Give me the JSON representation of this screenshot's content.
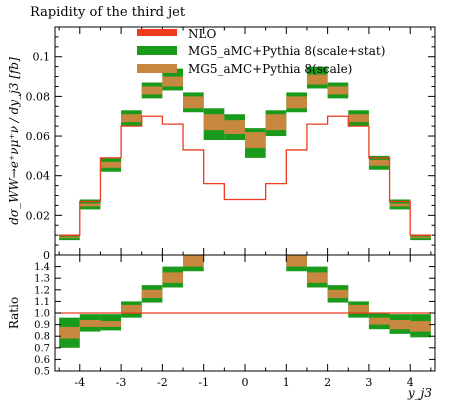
{
  "chart_data": {
    "title": "Rapidity of the third jet",
    "type": "histogram-with-ratio",
    "xlabel": "y_j3",
    "ylabel": "dσ_WW→e⁺νμ⁺ν / dy_j3 [fb]",
    "ratio_label": "Ratio",
    "xlim": [
      -4.6,
      4.6
    ],
    "ylim": [
      0,
      0.115
    ],
    "ratio_ylim": [
      0.5,
      1.5
    ],
    "x_ticks": [
      -4,
      -3,
      -2,
      -1,
      0,
      1,
      2,
      3,
      4
    ],
    "y_ticks": [
      0,
      0.02,
      0.04,
      0.06,
      0.08,
      0.1
    ],
    "y_tick_labels": [
      "0",
      "0.02",
      "0.04",
      "0.06",
      "0.08",
      "0.1"
    ],
    "ratio_ticks": [
      0.5,
      0.6,
      0.7,
      0.8,
      0.9,
      1.0,
      1.1,
      1.2,
      1.3,
      1.4
    ],
    "ratio_tick_labels": [
      "0.5",
      "0.6",
      "0.7",
      "0.8",
      "0.9",
      "1.0",
      "1.1",
      "1.2",
      "1.3",
      "1.4"
    ],
    "legend": [
      {
        "label": "NLO",
        "color": "#ee3a1e"
      },
      {
        "label": "MG5_aMC+Pythia 8(scale+stat)",
        "color": "#1a9a1a"
      },
      {
        "label": "MG5_aMC+Pythia 8(scale)",
        "color": "#c8873e"
      }
    ],
    "bin_edges": [
      -4.5,
      -4.0,
      -3.5,
      -3.0,
      -2.5,
      -2.0,
      -1.5,
      -1.0,
      -0.5,
      0.0,
      0.5,
      1.0,
      1.5,
      2.0,
      2.5,
      3.0,
      3.5,
      4.0,
      4.5
    ],
    "nlo": [
      0.01,
      0.027,
      0.049,
      0.065,
      0.07,
      0.066,
      0.053,
      0.036,
      0.028,
      0.028,
      0.036,
      0.053,
      0.066,
      0.07,
      0.065,
      0.049,
      0.027,
      0.01
    ],
    "mg5_scale_low": [
      0.0085,
      0.0245,
      0.044,
      0.067,
      0.081,
      0.085,
      0.074,
      0.063,
      0.061,
      0.054,
      0.063,
      0.074,
      0.086,
      0.081,
      0.067,
      0.045,
      0.0245,
      0.0085
    ],
    "mg5_scale_high": [
      0.0092,
      0.026,
      0.047,
      0.071,
      0.085,
      0.09,
      0.08,
      0.071,
      0.068,
      0.062,
      0.071,
      0.08,
      0.091,
      0.085,
      0.071,
      0.048,
      0.026,
      0.0092
    ],
    "mg5_stat_low": [
      0.0075,
      0.023,
      0.042,
      0.065,
      0.079,
      0.083,
      0.072,
      0.058,
      0.058,
      0.049,
      0.06,
      0.072,
      0.084,
      0.079,
      0.065,
      0.043,
      0.023,
      0.0075
    ],
    "mg5_stat_high": [
      0.01,
      0.028,
      0.049,
      0.073,
      0.087,
      0.094,
      0.082,
      0.074,
      0.071,
      0.064,
      0.073,
      0.082,
      0.095,
      0.087,
      0.073,
      0.05,
      0.028,
      0.01
    ],
    "ratio_nlo": [
      1.0,
      1.0,
      1.0,
      1.0,
      1.0,
      1.0,
      1.0,
      1.0,
      1.0,
      1.0,
      1.0,
      1.0,
      1.0,
      1.0,
      1.0,
      1.0,
      1.0,
      1.0
    ],
    "ratio_scale_low": [
      0.78,
      0.88,
      0.88,
      1.0,
      1.13,
      1.26,
      1.4,
      1.75,
      2.1,
      1.9,
      1.75,
      1.4,
      1.26,
      1.13,
      1.0,
      0.9,
      0.86,
      0.84
    ],
    "ratio_scale_high": [
      0.88,
      0.94,
      0.93,
      1.07,
      1.2,
      1.35,
      1.55,
      1.98,
      2.45,
      2.2,
      1.98,
      1.55,
      1.35,
      1.2,
      1.07,
      0.96,
      0.94,
      0.93
    ],
    "ratio_stat_low": [
      0.7,
      0.84,
      0.85,
      0.96,
      1.09,
      1.22,
      1.36,
      1.6,
      2.0,
      1.8,
      1.6,
      1.36,
      1.22,
      1.09,
      0.96,
      0.86,
      0.82,
      0.79
    ],
    "ratio_stat_high": [
      0.96,
      0.99,
      0.99,
      1.1,
      1.24,
      1.4,
      1.6,
      2.1,
      2.6,
      2.35,
      2.1,
      1.6,
      1.4,
      1.24,
      1.1,
      1.0,
      0.99,
      0.99
    ]
  }
}
